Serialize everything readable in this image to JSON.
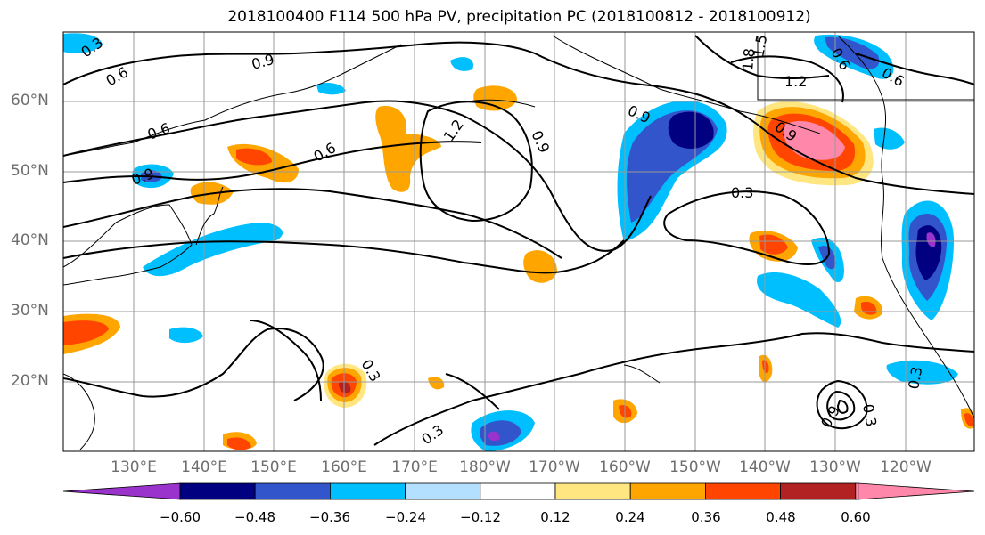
{
  "title": "2018100400 F114 500 hPa PV, precipitation PC (2018100812 - 2018100912)",
  "lat_labels": [
    "60°N",
    "50°N",
    "40°N",
    "30°N",
    "20°N"
  ],
  "lon_labels": [
    "130°E",
    "140°E",
    "150°E",
    "160°E",
    "170°E",
    "180°W",
    "170°W",
    "160°W",
    "150°W",
    "140°W",
    "130°W",
    "120°W"
  ],
  "colorbar": {
    "ticks": [
      "−0.60",
      "−0.48",
      "−0.36",
      "−0.24",
      "−0.12",
      "0.12",
      "0.24",
      "0.36",
      "0.48",
      "0.60"
    ],
    "colors": [
      "#9933cc",
      "#000080",
      "#3355cc",
      "#00bfff",
      "#b3e0ff",
      "#ffffff",
      "#ffe680",
      "#ffa500",
      "#ff4500",
      "#b22222",
      "#ff88aa"
    ]
  },
  "contour_labels": [
    "0.3",
    "0.6",
    "0.9",
    "1.2",
    "1.5",
    "1.8",
    "0.6",
    "0.9",
    "0.3",
    "0.3",
    "0.3",
    "0.9",
    "1.2",
    "0.9",
    "0.6",
    "0.6",
    "0.9",
    "0.3",
    "0.3",
    "0.9",
    "0.6"
  ],
  "colors": {
    "negative_strong": "#000080",
    "positive_strong": "#ff4500",
    "contour": "#000000",
    "grid": "#999999",
    "coast": "#000000"
  }
}
